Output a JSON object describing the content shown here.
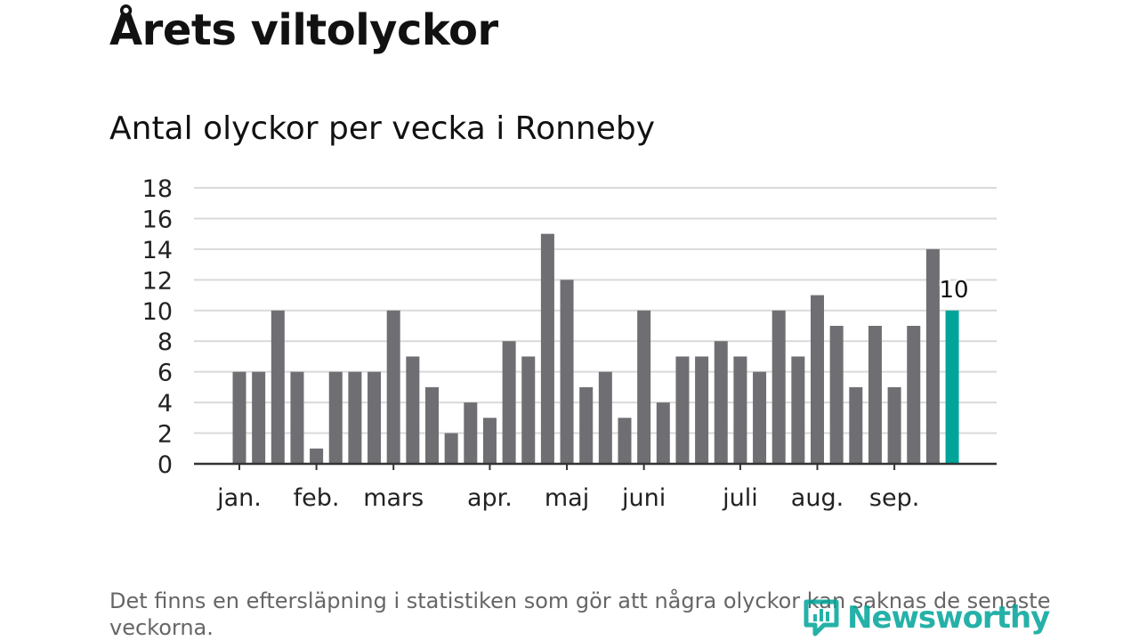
{
  "header": {
    "title": "Årets viltolyckor",
    "subtitle": "Antal olyckor per vecka i Ronneby"
  },
  "chart_data": {
    "type": "bar",
    "title": "Antal olyckor per vecka i Ronneby",
    "xlabel": "",
    "ylabel": "",
    "ylim": [
      0,
      18
    ],
    "yticks": [
      0,
      2,
      4,
      6,
      8,
      10,
      12,
      14,
      16,
      18
    ],
    "grid": true,
    "values": [
      6,
      6,
      10,
      6,
      1,
      6,
      6,
      6,
      10,
      7,
      5,
      2,
      4,
      3,
      8,
      7,
      15,
      12,
      5,
      6,
      3,
      10,
      4,
      7,
      7,
      8,
      7,
      6,
      10,
      7,
      11,
      9,
      5,
      9,
      5,
      9,
      14,
      10
    ],
    "month_labels": [
      {
        "label": "jan.",
        "week": 1
      },
      {
        "label": "feb.",
        "week": 5
      },
      {
        "label": "mars",
        "week": 9
      },
      {
        "label": "apr.",
        "week": 14
      },
      {
        "label": "maj",
        "week": 18
      },
      {
        "label": "juni",
        "week": 22
      },
      {
        "label": "juli",
        "week": 27
      },
      {
        "label": "aug.",
        "week": 31
      },
      {
        "label": "sep.",
        "week": 35
      }
    ],
    "highlight_index": 37,
    "highlight_label": "10",
    "colors": {
      "bar": "#6f6e73",
      "highlight": "#00a499",
      "grid": "#d9d9d9",
      "axis": "#333333"
    }
  },
  "footnote": "Det finns en eftersläpning i statistiken som gör att några olyckor kan saknas de senaste veckorna.",
  "brand": {
    "name": "Newsworthy",
    "color": "#00a499"
  }
}
